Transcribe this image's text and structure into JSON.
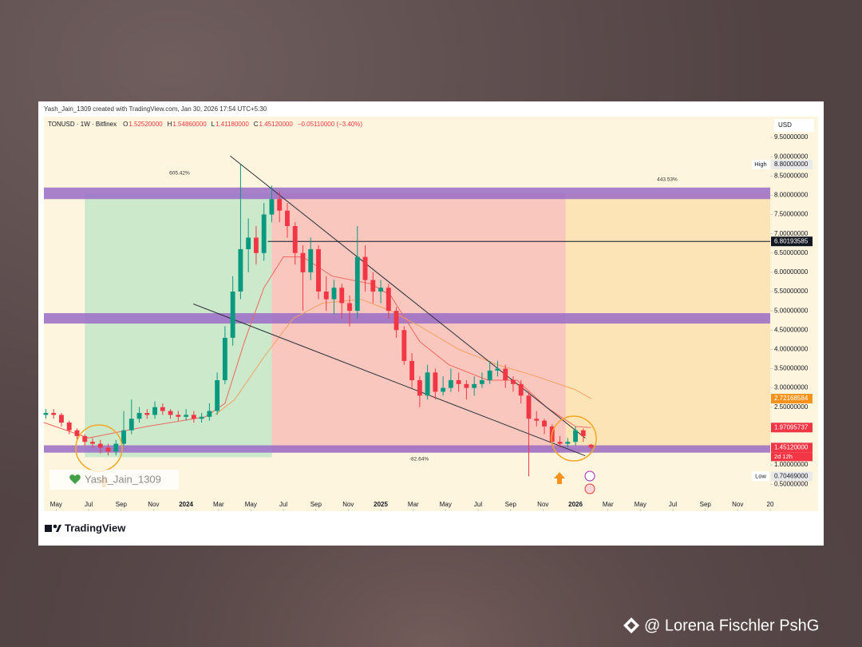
{
  "chart_data": {
    "type": "candlestick",
    "attribution": "Yash_Jain_1309 created with TradingView.com, Jan 30, 2026 17:54 UTC+5:30",
    "symbol": "TONUSD · 1W · Bitfinex",
    "ohlc_header": [
      {
        "key": "O",
        "value": "1.52520000"
      },
      {
        "key": "H",
        "value": "1.54860000"
      },
      {
        "key": "L",
        "value": "1.41180000"
      },
      {
        "key": "C",
        "value": "1.45120000"
      }
    ],
    "change": "−0.05110000 (−3.40%)",
    "currency": "USD",
    "up_color": "#089981",
    "down_color": "#f23645",
    "x": [
      2023.28,
      2023.32,
      2023.36,
      2023.4,
      2023.44,
      2023.48,
      2023.52,
      2023.56,
      2023.6,
      2023.64,
      2023.68,
      2023.72,
      2023.76,
      2023.8,
      2023.84,
      2023.88,
      2023.92,
      2023.96,
      2024.0,
      2024.04,
      2024.08,
      2024.12,
      2024.16,
      2024.2,
      2024.24,
      2024.28,
      2024.32,
      2024.36,
      2024.4,
      2024.44,
      2024.48,
      2024.52,
      2024.56,
      2024.6,
      2024.64,
      2024.68,
      2024.72,
      2024.76,
      2024.8,
      2024.84,
      2024.88,
      2024.92,
      2024.96,
      2025.0,
      2025.04,
      2025.08,
      2025.12,
      2025.16,
      2025.2,
      2025.24,
      2025.28,
      2025.32,
      2025.36,
      2025.4,
      2025.44,
      2025.48,
      2025.52,
      2025.56,
      2025.6,
      2025.64,
      2025.68,
      2025.72,
      2025.76,
      2025.8,
      2025.84,
      2025.88,
      2025.92,
      2025.96,
      2026.0,
      2026.04,
      2026.08
    ],
    "open": [
      2.3,
      2.35,
      2.3,
      2.1,
      1.9,
      1.75,
      1.6,
      1.55,
      1.45,
      1.35,
      1.55,
      1.9,
      2.2,
      2.35,
      2.3,
      2.5,
      2.4,
      2.3,
      2.25,
      2.3,
      2.2,
      2.25,
      2.4,
      3.2,
      4.3,
      5.5,
      6.6,
      6.9,
      6.5,
      7.5,
      7.9,
      7.6,
      7.2,
      6.5,
      6.0,
      6.6,
      5.5,
      5.3,
      5.6,
      5.2,
      5.0,
      6.4,
      5.8,
      5.5,
      5.6,
      5.0,
      4.5,
      3.7,
      3.2,
      2.8,
      3.4,
      2.9,
      3.0,
      3.2,
      3.1,
      3.0,
      3.1,
      3.2,
      3.45,
      3.5,
      3.2,
      3.1,
      2.8,
      2.2,
      2.15,
      2.0,
      1.6,
      1.55,
      1.6,
      1.9,
      1.5252
    ],
    "high": [
      2.45,
      2.45,
      2.35,
      2.15,
      1.95,
      1.8,
      1.7,
      1.65,
      1.55,
      1.65,
      2.4,
      2.7,
      2.5,
      2.45,
      2.65,
      2.6,
      2.45,
      2.4,
      2.45,
      2.4,
      2.35,
      2.6,
      3.4,
      4.6,
      5.9,
      8.8,
      7.4,
      7.2,
      7.8,
      8.25,
      8.1,
      7.8,
      7.3,
      6.7,
      6.9,
      6.7,
      5.9,
      5.8,
      5.7,
      5.4,
      7.2,
      6.7,
      6.0,
      5.8,
      5.7,
      5.1,
      4.6,
      3.9,
      3.3,
      3.6,
      3.5,
      3.3,
      3.5,
      3.4,
      3.2,
      3.3,
      3.4,
      3.7,
      3.7,
      3.6,
      3.3,
      3.2,
      2.9,
      2.4,
      2.2,
      2.05,
      1.75,
      1.7,
      2.0,
      1.95,
      1.5486
    ],
    "low": [
      2.2,
      2.2,
      2.0,
      1.8,
      1.65,
      1.5,
      1.45,
      1.3,
      1.25,
      1.25,
      1.5,
      1.8,
      2.1,
      2.2,
      2.2,
      2.3,
      2.2,
      2.15,
      2.15,
      2.1,
      2.1,
      2.15,
      2.3,
      3.1,
      4.1,
      5.3,
      6.0,
      6.2,
      6.3,
      7.3,
      7.3,
      6.9,
      6.2,
      5.0,
      5.8,
      5.3,
      5.0,
      4.9,
      4.8,
      4.6,
      4.8,
      5.5,
      5.2,
      5.2,
      4.8,
      4.3,
      3.6,
      3.0,
      2.5,
      2.7,
      2.7,
      2.8,
      2.9,
      2.9,
      2.7,
      2.8,
      3.0,
      3.1,
      3.3,
      3.0,
      2.9,
      2.6,
      0.70469,
      2.0,
      1.8,
      1.5,
      1.45,
      1.45,
      1.5,
      1.6,
      1.4118
    ],
    "close": [
      2.35,
      2.3,
      2.1,
      1.9,
      1.75,
      1.6,
      1.55,
      1.45,
      1.35,
      1.55,
      1.9,
      2.2,
      2.35,
      2.3,
      2.5,
      2.4,
      2.3,
      2.25,
      2.3,
      2.2,
      2.25,
      2.4,
      3.2,
      4.3,
      5.5,
      6.6,
      6.9,
      6.5,
      7.5,
      7.9,
      7.6,
      7.2,
      6.5,
      6.0,
      6.6,
      5.5,
      5.3,
      5.6,
      5.2,
      5.0,
      6.4,
      5.8,
      5.5,
      5.6,
      5.0,
      4.5,
      3.7,
      3.2,
      2.8,
      3.4,
      2.9,
      3.0,
      3.2,
      3.1,
      3.0,
      3.1,
      3.2,
      3.45,
      3.5,
      3.2,
      3.1,
      2.8,
      2.2,
      2.15,
      2.0,
      1.6,
      1.55,
      1.6,
      1.9,
      1.75,
      1.4512
    ],
    "xlim": [
      2023.27,
      2027.0
    ],
    "xticks": [
      {
        "value": 2023.333,
        "label": "May"
      },
      {
        "value": 2023.5,
        "label": "Jul"
      },
      {
        "value": 2023.667,
        "label": "Sep"
      },
      {
        "value": 2023.833,
        "label": "Nov"
      },
      2024,
      {
        "value": 2024.167,
        "label": "Mar"
      },
      {
        "value": 2024.333,
        "label": "May"
      },
      {
        "value": 2024.5,
        "label": "Jul"
      },
      {
        "value": 2024.667,
        "label": "Sep"
      },
      {
        "value": 2024.833,
        "label": "Nov"
      },
      2025,
      {
        "value": 2025.167,
        "label": "Mar"
      },
      {
        "value": 2025.333,
        "label": "May"
      },
      {
        "value": 2025.5,
        "label": "Jul"
      },
      {
        "value": 2025.667,
        "label": "Sep"
      },
      {
        "value": 2025.833,
        "label": "Nov"
      },
      2026,
      {
        "value": 2026.167,
        "label": "Mar"
      },
      {
        "value": 2026.333,
        "label": "May"
      },
      {
        "value": 2026.5,
        "label": "Jul"
      },
      {
        "value": 2026.667,
        "label": "Sep"
      },
      {
        "value": 2026.833,
        "label": "Nov"
      },
      {
        "value": 2027,
        "label": "20"
      }
    ],
    "ylim": [
      -0.2,
      10.04
    ],
    "yticks": [
      {
        "value": 9.5,
        "label": "9.50000000"
      },
      {
        "value": 9,
        "label": "9.00000000"
      },
      {
        "value": 8.5,
        "label": "8.50000000"
      },
      {
        "value": 8,
        "label": "8.00000000"
      },
      {
        "value": 7.5,
        "label": "7.50000000"
      },
      {
        "value": 7,
        "label": "7.00000000"
      },
      {
        "value": 6.5,
        "label": "6.50000000"
      },
      {
        "value": 6,
        "label": "6.00000000"
      },
      {
        "value": 5.5,
        "label": "5.50000000"
      },
      {
        "value": 5,
        "label": "5.00000000"
      },
      {
        "value": 4.5,
        "label": "4.50000000"
      },
      {
        "value": 4,
        "label": "4.00000000"
      },
      {
        "value": 3.5,
        "label": "3.50000000"
      },
      {
        "value": 3,
        "label": "3.00000000"
      },
      {
        "value": 2.5,
        "label": "2.50000000"
      },
      {
        "value": 1,
        "label": "1.00000000"
      },
      {
        "value": 0.5,
        "label": "0.50000000"
      }
    ],
    "grid": false,
    "price_tags": [
      {
        "value": 8.8,
        "label": "8.80000000",
        "tag": "High",
        "color": "#e9e9ea",
        "text_color": "#131722"
      },
      {
        "value": 2.72168584,
        "label": "2.72168584",
        "color": "#f7931a",
        "text_color": "#ffffff"
      },
      {
        "value": 1.97095737,
        "label": "1.97095737",
        "color": "#f23645",
        "text_color": "#ffffff"
      },
      {
        "value": 1.4512,
        "label": "1.45120000",
        "sub": "2d 12h",
        "color": "#f23645",
        "text_color": "#ffffff"
      },
      {
        "value": 0.70469,
        "label": "0.70469000",
        "tag": "Low",
        "color": "#e9e9ea",
        "text_color": "#131722"
      }
    ],
    "hline": {
      "value": 6.80193585,
      "label": "6.80193585",
      "from": 2024.42,
      "color": "#131722"
    },
    "moving_averages": [
      {
        "color": "#f0675f",
        "x": [
          2023.27,
          2023.5,
          2023.8,
          2024.1,
          2024.2,
          2024.3,
          2024.4,
          2024.5,
          2024.6,
          2024.75,
          2024.95,
          2025.05,
          2025.2,
          2025.35,
          2025.55,
          2025.7,
          2025.85,
          2026.0,
          2026.08
        ],
        "values": [
          2.1,
          1.7,
          2.0,
          2.25,
          2.6,
          4.2,
          5.6,
          6.4,
          6.4,
          5.9,
          5.7,
          5.4,
          4.2,
          3.6,
          3.2,
          3.2,
          2.5,
          2.0,
          1.97
        ]
      },
      {
        "color": "#f5a15f",
        "x": [
          2024.15,
          2024.25,
          2024.4,
          2024.55,
          2024.7,
          2024.9,
          2025.05,
          2025.2,
          2025.4,
          2025.6,
          2025.8,
          2026.0,
          2026.08
        ],
        "values": [
          2.3,
          2.7,
          3.8,
          4.8,
          5.2,
          5.3,
          5.0,
          4.6,
          4.0,
          3.6,
          3.3,
          2.95,
          2.72
        ]
      }
    ],
    "zones": [
      [
        7.9,
        8.2
      ],
      [
        4.67,
        4.94
      ],
      [
        1.32,
        1.51
      ]
    ],
    "zone_color": "#9a6cc8",
    "boxes": [
      {
        "x": [
          2023.48,
          2024.44
        ],
        "y": [
          1.2,
          8.05
        ],
        "color": "#c3e6c8"
      },
      {
        "x": [
          2024.44,
          2025.95
        ],
        "y": [
          1.32,
          8.05
        ],
        "color": "#f8beb9"
      },
      {
        "x": [
          2025.95,
          2027.0
        ],
        "y": [
          1.32,
          8.05
        ],
        "color": "#fde1b0"
      }
    ],
    "percent_labels": [
      "605.42%",
      "443.53%",
      "-82.64%"
    ],
    "trendlines": [
      {
        "x": [
          2024.227,
          2026.05
        ],
        "y": [
          9.02,
          1.7
        ]
      },
      {
        "x": [
          2024.037,
          2026.05
        ],
        "y": [
          5.18,
          1.24
        ]
      }
    ],
    "watermark": "Yash_Jain_1309",
    "brand": "TradingView",
    "credit": "@ Lorena Fischler PshG"
  }
}
